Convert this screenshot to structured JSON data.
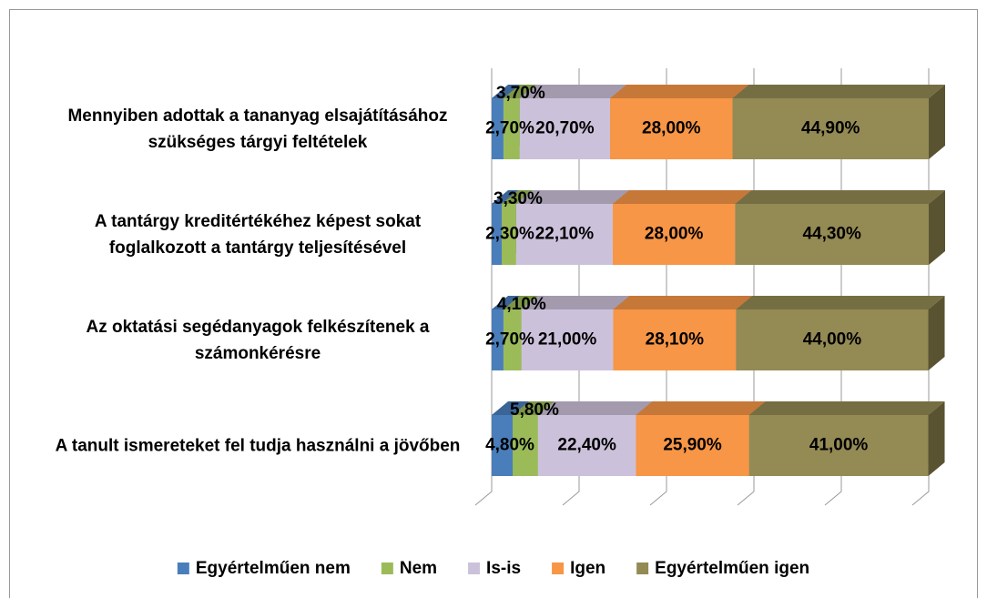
{
  "chart_data": {
    "type": "bar3d_stacked_horizontal",
    "categories": [
      "Mennyiben adottak a tananyag elsajátításához szükséges tárgyi feltételek",
      "A tantárgy kreditértékéhez képest sokat foglalkozott a tantárgy teljesítésével",
      "Az oktatási segédanyagok felkészítenek a számonkérésre",
      "A tanult ismereteket fel tudja használni a jövőben"
    ],
    "series": [
      {
        "name": "Egyértelműen nem",
        "color": "#4a7ebb",
        "values": [
          2.7,
          2.3,
          2.7,
          4.8
        ],
        "value_labels": [
          "2,70%",
          "2,30%",
          "2,70%",
          "4,80%"
        ]
      },
      {
        "name": "Nem",
        "color": "#9bbb59",
        "values": [
          3.7,
          3.3,
          4.1,
          5.8
        ],
        "value_labels": [
          "3,70%",
          "3,30%",
          "4,10%",
          "5,80%"
        ]
      },
      {
        "name": "Is-is",
        "color": "#ccc1da",
        "values": [
          20.7,
          22.1,
          21.0,
          22.4
        ],
        "value_labels": [
          "20,70%",
          "22,10%",
          "21,00%",
          "22,40%"
        ]
      },
      {
        "name": "Igen",
        "color": "#f79646",
        "values": [
          28.0,
          28.0,
          28.1,
          25.9
        ],
        "value_labels": [
          "28,00%",
          "28,00%",
          "28,10%",
          "25,90%"
        ]
      },
      {
        "name": "Egyértelműen igen",
        "color": "#948a54",
        "values": [
          44.9,
          44.3,
          44.0,
          41.0
        ],
        "value_labels": [
          "44,90%",
          "44,30%",
          "44,00%",
          "41,00%"
        ]
      }
    ],
    "xlim": [
      0,
      100
    ],
    "xticks": [
      0,
      20,
      40,
      60,
      80,
      100
    ],
    "grid": true,
    "legend": "bottom"
  }
}
